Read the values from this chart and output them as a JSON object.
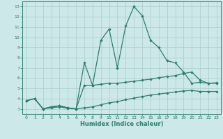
{
  "title": "",
  "xlabel": "Humidex (Indice chaleur)",
  "xlim": [
    -0.5,
    23.5
  ],
  "ylim": [
    2.5,
    13.5
  ],
  "xticks": [
    0,
    1,
    2,
    3,
    4,
    5,
    6,
    7,
    8,
    9,
    10,
    11,
    12,
    13,
    14,
    15,
    16,
    17,
    18,
    19,
    20,
    21,
    22,
    23
  ],
  "yticks": [
    3,
    4,
    5,
    6,
    7,
    8,
    9,
    10,
    11,
    12,
    13
  ],
  "bg_color": "#cce8e8",
  "grid_color": "#aacccc",
  "line_color": "#2e7d6e",
  "line3_x": [
    0,
    1,
    2,
    3,
    4,
    5,
    6,
    7,
    8,
    9,
    10,
    11,
    12,
    13,
    14,
    15,
    16,
    17,
    18,
    19,
    20,
    21,
    22,
    23
  ],
  "line3_y": [
    3.8,
    4.0,
    3.0,
    3.2,
    3.3,
    3.1,
    3.0,
    7.5,
    5.3,
    9.7,
    10.8,
    7.0,
    11.1,
    13.0,
    12.1,
    9.7,
    9.0,
    7.7,
    7.5,
    6.6,
    5.5,
    5.6,
    5.5,
    5.5
  ],
  "line2_x": [
    0,
    1,
    2,
    3,
    4,
    5,
    6,
    7,
    8,
    9,
    10,
    11,
    12,
    13,
    14,
    15,
    16,
    17,
    18,
    19,
    20,
    21,
    22,
    23
  ],
  "line2_y": [
    3.8,
    4.0,
    3.0,
    3.2,
    3.3,
    3.1,
    3.0,
    5.3,
    5.3,
    5.4,
    5.5,
    5.5,
    5.6,
    5.7,
    5.8,
    5.9,
    6.05,
    6.15,
    6.25,
    6.45,
    6.6,
    5.8,
    5.5,
    5.55
  ],
  "line1_x": [
    0,
    1,
    2,
    3,
    4,
    5,
    6,
    7,
    8,
    9,
    10,
    11,
    12,
    13,
    14,
    15,
    16,
    17,
    18,
    19,
    20,
    21,
    22,
    23
  ],
  "line1_y": [
    3.8,
    4.0,
    3.0,
    3.1,
    3.2,
    3.05,
    3.0,
    3.1,
    3.2,
    3.4,
    3.6,
    3.7,
    3.9,
    4.05,
    4.2,
    4.35,
    4.45,
    4.55,
    4.65,
    4.75,
    4.8,
    4.7,
    4.7,
    4.7
  ]
}
